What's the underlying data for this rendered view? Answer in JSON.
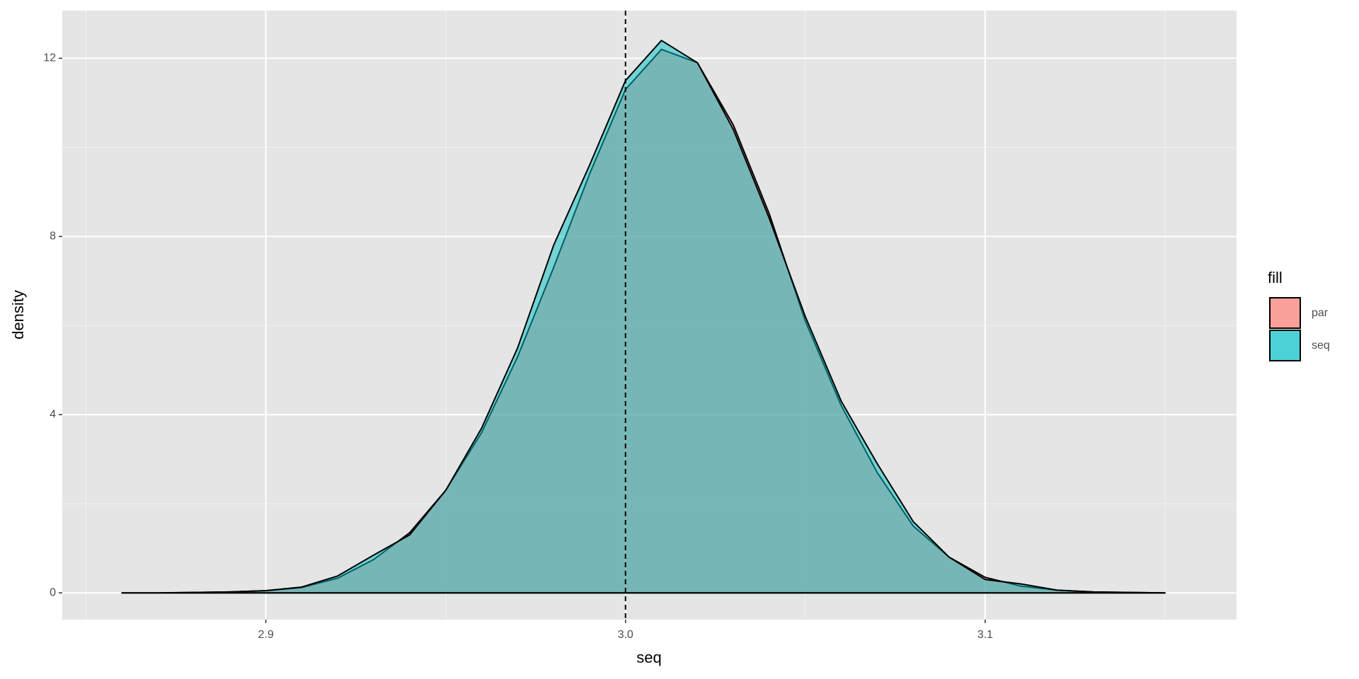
{
  "chart_data": {
    "type": "density",
    "x_label": "seq",
    "y_label": "density",
    "legend_title": "fill",
    "x": [
      2.86,
      2.87,
      2.88,
      2.89,
      2.9,
      2.91,
      2.92,
      2.93,
      2.94,
      2.95,
      2.96,
      2.97,
      2.98,
      2.99,
      3.0,
      3.01,
      3.02,
      3.03,
      3.04,
      3.05,
      3.06,
      3.07,
      3.08,
      3.09,
      3.1,
      3.11,
      3.12,
      3.13,
      3.14,
      3.15
    ],
    "series": [
      {
        "name": "par",
        "color": "#F8766D",
        "values": [
          0,
          0,
          0.01,
          0.02,
          0.05,
          0.12,
          0.33,
          0.75,
          1.35,
          2.3,
          3.6,
          5.3,
          7.3,
          9.4,
          11.3,
          12.2,
          11.9,
          10.5,
          8.5,
          6.1,
          4.2,
          2.7,
          1.5,
          0.8,
          0.35,
          0.15,
          0.06,
          0.02,
          0.01,
          0
        ]
      },
      {
        "name": "seq",
        "color": "#00BFC4",
        "values": [
          0,
          0,
          0.01,
          0.02,
          0.05,
          0.13,
          0.38,
          0.85,
          1.3,
          2.3,
          3.7,
          5.5,
          7.8,
          9.6,
          11.5,
          12.4,
          11.9,
          10.4,
          8.4,
          6.2,
          4.3,
          2.9,
          1.6,
          0.8,
          0.3,
          0.2,
          0.06,
          0.02,
          0.01,
          0
        ]
      }
    ],
    "vline": 3.0,
    "xlim": [
      2.8434,
      3.1699
    ],
    "ylim": [
      -0.6,
      13.07
    ],
    "xticks": [
      2.9,
      {
        "value": 3.0,
        "label": "3.0"
      },
      3.1
    ],
    "yticks": [
      0,
      4,
      8,
      12
    ],
    "x_minor_grid": [
      2.85,
      2.95,
      3.05,
      3.15
    ],
    "y_minor_grid": [
      2,
      6,
      10
    ],
    "grid": true
  }
}
